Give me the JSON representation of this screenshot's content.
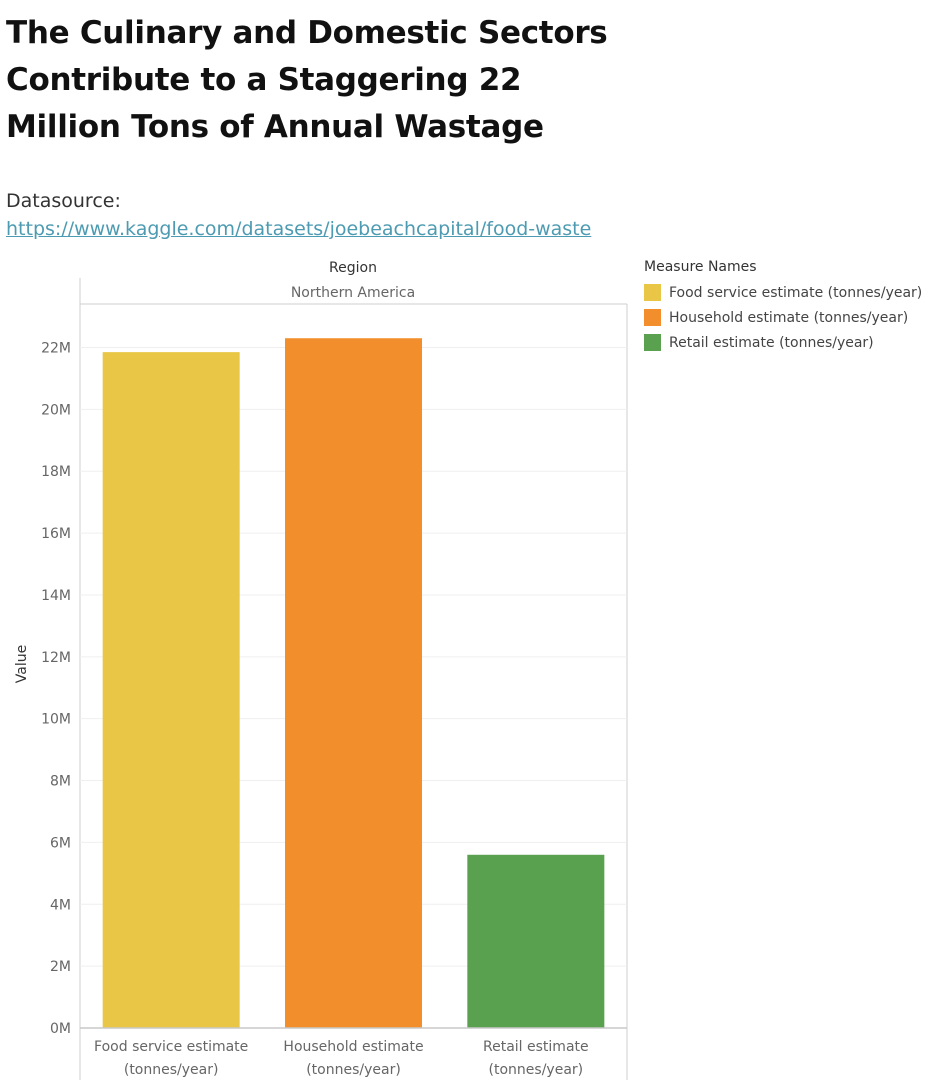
{
  "header": {
    "title": "The Culinary and Domestic Sectors Contribute to a Staggering 22 Million Tons of Annual Wastage",
    "source_prefix": "Datasource: ",
    "source_link": "https://www.kaggle.com/datasets/joebeachcapital/food-waste"
  },
  "chart_data": {
    "type": "bar",
    "column_header": "Region",
    "column_value": "Northern America",
    "ylabel": "Value",
    "ylim": [
      0,
      24000000
    ],
    "y_ticks": [
      "0M",
      "2M",
      "4M",
      "6M",
      "8M",
      "10M",
      "12M",
      "14M",
      "16M",
      "18M",
      "20M",
      "22M"
    ],
    "grid": true,
    "categories": [
      "Food service estimate (tonnes/year)",
      "Household estimate (tonnes/year)",
      "Retail estimate (tonnes/year)"
    ],
    "category_lines": [
      [
        "Food service estimate",
        "(tonnes/year)"
      ],
      [
        "Household estimate",
        "(tonnes/year)"
      ],
      [
        "Retail estimate",
        "(tonnes/year)"
      ]
    ],
    "values": [
      21850000,
      22300000,
      5600000
    ],
    "colors": [
      "#e9c645",
      "#f28f2c",
      "#59a14f"
    ],
    "legend": {
      "title": "Measure Names",
      "placement": "right",
      "items": [
        "Food service estimate (tonnes/year)",
        "Household estimate (tonnes/year)",
        "Retail estimate (tonnes/year)"
      ]
    }
  }
}
